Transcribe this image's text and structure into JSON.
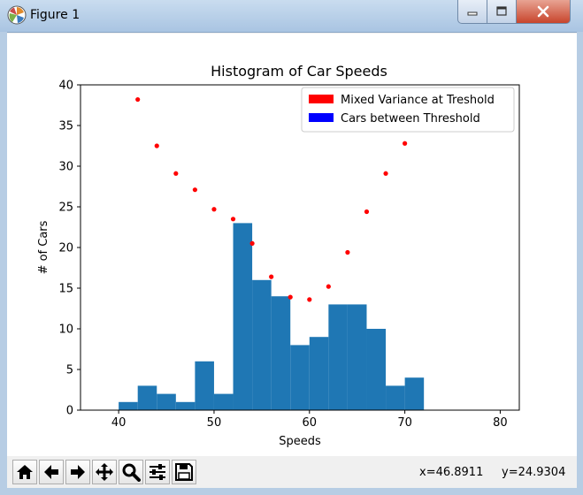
{
  "window": {
    "title": "Figure 1",
    "app_icon": "matplotlib-logo-icon"
  },
  "window_controls": {
    "minimize_icon": "minimize-icon",
    "maximize_icon": "maximize-icon",
    "close_icon": "close-icon"
  },
  "toolbar": {
    "buttons": [
      {
        "name": "home-button",
        "icon": "home-icon"
      },
      {
        "name": "back-button",
        "icon": "arrow-left-icon"
      },
      {
        "name": "forward-button",
        "icon": "arrow-right-icon"
      },
      {
        "name": "pan-button",
        "icon": "move-arrows-icon"
      },
      {
        "name": "zoom-button",
        "icon": "magnifier-icon"
      },
      {
        "name": "subplots-button",
        "icon": "sliders-icon"
      },
      {
        "name": "save-button",
        "icon": "floppy-disk-icon"
      }
    ],
    "coords_text": "x=46.8911     y=24.9304"
  },
  "colors": {
    "bar": "#1f77b4",
    "points": "#ff0000",
    "legend_red": "#ff0000",
    "legend_blue": "#0000ff"
  },
  "chart_data": {
    "type": "bar",
    "title": "Histogram of Car Speeds",
    "xlabel": "Speeds",
    "ylabel": "# of Cars",
    "xlim": [
      36,
      82
    ],
    "ylim": [
      0,
      40
    ],
    "xticks": [
      40,
      50,
      60,
      70,
      80
    ],
    "yticks": [
      0,
      5,
      10,
      15,
      20,
      25,
      30,
      35,
      40
    ],
    "bin_width": 2,
    "bins": [
      {
        "start": 40,
        "value": 1
      },
      {
        "start": 42,
        "value": 3
      },
      {
        "start": 44,
        "value": 2
      },
      {
        "start": 46,
        "value": 1
      },
      {
        "start": 48,
        "value": 6
      },
      {
        "start": 50,
        "value": 2
      },
      {
        "start": 52,
        "value": 23
      },
      {
        "start": 54,
        "value": 16
      },
      {
        "start": 56,
        "value": 14
      },
      {
        "start": 58,
        "value": 8
      },
      {
        "start": 60,
        "value": 9
      },
      {
        "start": 62,
        "value": 13
      },
      {
        "start": 64,
        "value": 13
      },
      {
        "start": 66,
        "value": 10
      },
      {
        "start": 68,
        "value": 3
      },
      {
        "start": 70,
        "value": 4
      }
    ],
    "scatter": [
      {
        "x": 42,
        "y": 38.2
      },
      {
        "x": 44,
        "y": 32.5
      },
      {
        "x": 46,
        "y": 29.1
      },
      {
        "x": 48,
        "y": 27.1
      },
      {
        "x": 50,
        "y": 24.7
      },
      {
        "x": 52,
        "y": 23.5
      },
      {
        "x": 54,
        "y": 20.5
      },
      {
        "x": 56,
        "y": 16.4
      },
      {
        "x": 58,
        "y": 13.9
      },
      {
        "x": 60,
        "y": 13.6
      },
      {
        "x": 62,
        "y": 15.2
      },
      {
        "x": 64,
        "y": 19.4
      },
      {
        "x": 66,
        "y": 24.4
      },
      {
        "x": 68,
        "y": 29.1
      },
      {
        "x": 70,
        "y": 32.8
      }
    ],
    "legend": {
      "placement": "upper right",
      "entries": [
        {
          "label": "Mixed Variance at Treshold",
          "color": "#ff0000"
        },
        {
          "label": "Cars between Threshold",
          "color": "#0000ff"
        }
      ]
    }
  }
}
